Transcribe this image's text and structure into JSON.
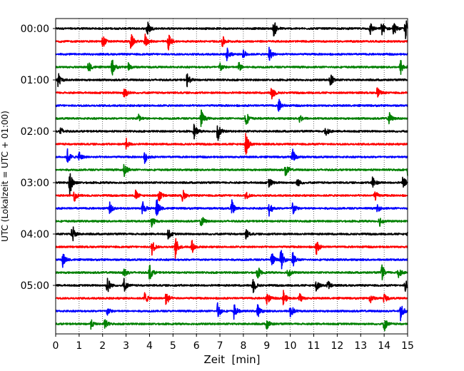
{
  "chart_data": {
    "type": "line",
    "title": "",
    "xlabel": "Zeit  [min]",
    "ylabel": "UTC (Lokalzeit = UTC + 01:00)",
    "xlim": [
      0,
      15
    ],
    "xticks": [
      "0",
      "1",
      "2",
      "3",
      "4",
      "5",
      "6",
      "7",
      "8",
      "9",
      "10",
      "11",
      "12",
      "13",
      "14",
      "15"
    ],
    "ytick_labels": [
      "00:00",
      "01:00",
      "02:00",
      "03:00",
      "04:00",
      "05:00"
    ],
    "grid": "vertical dotted at each minute",
    "trace_interval_min": 15,
    "trace_count": 24,
    "colors": [
      "#000000",
      "#ff0000",
      "#0000ff",
      "#008000"
    ],
    "series": [
      {
        "hour": "00:00",
        "traces": [
          {
            "offset_min": 0,
            "color": "#000000",
            "events": [
              [
                3.9,
                1.0
              ],
              [
                9.3,
                1.0
              ],
              [
                13.4,
                0.8
              ],
              [
                13.9,
                0.9
              ],
              [
                14.4,
                0.8
              ],
              [
                14.9,
                1.3
              ]
            ]
          },
          {
            "offset_min": 15,
            "color": "#ff0000",
            "events": [
              [
                2.0,
                0.8
              ],
              [
                3.2,
                1.0
              ],
              [
                3.8,
                0.9
              ],
              [
                4.8,
                1.0
              ],
              [
                7.1,
                0.7
              ]
            ]
          },
          {
            "offset_min": 30,
            "color": "#0000ff",
            "events": [
              [
                7.3,
                0.8
              ],
              [
                8.0,
                0.6
              ],
              [
                9.1,
                0.9
              ]
            ]
          },
          {
            "offset_min": 45,
            "color": "#008000",
            "events": [
              [
                1.4,
                0.7
              ],
              [
                2.4,
                1.0
              ],
              [
                3.1,
                0.5
              ],
              [
                7.0,
                0.6
              ],
              [
                7.8,
                0.6
              ],
              [
                14.7,
                0.9
              ]
            ]
          }
        ]
      },
      {
        "hour": "01:00",
        "traces": [
          {
            "offset_min": 0,
            "color": "#000000",
            "events": [
              [
                0.1,
                0.9
              ],
              [
                5.6,
                0.8
              ],
              [
                11.7,
                1.0
              ]
            ]
          },
          {
            "offset_min": 15,
            "color": "#ff0000",
            "events": [
              [
                2.9,
                1.0
              ],
              [
                9.2,
                1.0
              ],
              [
                13.7,
                0.7
              ]
            ]
          },
          {
            "offset_min": 30,
            "color": "#0000ff",
            "events": [
              [
                9.5,
                0.8
              ]
            ]
          },
          {
            "offset_min": 45,
            "color": "#008000",
            "events": [
              [
                3.5,
                0.6
              ],
              [
                6.2,
                1.1
              ],
              [
                8.1,
                1.0
              ],
              [
                10.4,
                0.5
              ],
              [
                14.2,
                0.8
              ]
            ]
          }
        ]
      },
      {
        "hour": "02:00",
        "traces": [
          {
            "offset_min": 0,
            "color": "#000000",
            "events": [
              [
                0.2,
                0.5
              ],
              [
                5.9,
                0.9
              ],
              [
                6.9,
                1.2
              ],
              [
                11.5,
                0.7
              ]
            ]
          },
          {
            "offset_min": 15,
            "color": "#ff0000",
            "events": [
              [
                3.0,
                0.6
              ],
              [
                8.1,
                1.5
              ]
            ]
          },
          {
            "offset_min": 30,
            "color": "#0000ff",
            "events": [
              [
                0.5,
                0.9
              ],
              [
                1.0,
                0.7
              ],
              [
                3.8,
                0.7
              ],
              [
                10.1,
                1.0
              ]
            ]
          },
          {
            "offset_min": 45,
            "color": "#008000",
            "events": [
              [
                2.9,
                1.1
              ],
              [
                9.8,
                0.9
              ],
              [
                15.0,
                0.6
              ]
            ]
          }
        ]
      },
      {
        "hour": "03:00",
        "traces": [
          {
            "offset_min": 0,
            "color": "#000000",
            "events": [
              [
                0.6,
                1.5
              ],
              [
                9.1,
                0.6
              ],
              [
                10.3,
                0.6
              ],
              [
                13.5,
                0.9
              ],
              [
                14.8,
                0.8
              ]
            ]
          },
          {
            "offset_min": 15,
            "color": "#ff0000",
            "events": [
              [
                0.8,
                0.7
              ],
              [
                3.4,
                0.6
              ],
              [
                4.4,
                0.8
              ],
              [
                5.4,
                0.8
              ],
              [
                8.1,
                0.5
              ],
              [
                13.6,
                0.6
              ]
            ]
          },
          {
            "offset_min": 30,
            "color": "#0000ff",
            "events": [
              [
                2.3,
                0.6
              ],
              [
                3.7,
                1.0
              ],
              [
                4.3,
                1.2
              ],
              [
                7.5,
                1.0
              ],
              [
                9.1,
                0.9
              ],
              [
                10.1,
                0.9
              ],
              [
                13.7,
                0.5
              ]
            ]
          },
          {
            "offset_min": 45,
            "color": "#008000",
            "events": [
              [
                4.1,
                0.7
              ],
              [
                6.2,
                0.8
              ],
              [
                13.8,
                0.6
              ]
            ]
          }
        ]
      },
      {
        "hour": "04:00",
        "traces": [
          {
            "offset_min": 0,
            "color": "#000000",
            "events": [
              [
                0.7,
                1.2
              ],
              [
                4.8,
                0.6
              ],
              [
                8.1,
                0.7
              ],
              [
                15.0,
                0.4
              ]
            ]
          },
          {
            "offset_min": 15,
            "color": "#ff0000",
            "events": [
              [
                4.1,
                0.9
              ],
              [
                5.1,
                1.2
              ],
              [
                5.8,
                0.8
              ],
              [
                11.1,
                0.9
              ]
            ]
          },
          {
            "offset_min": 30,
            "color": "#0000ff",
            "events": [
              [
                0.3,
                0.9
              ],
              [
                9.2,
                1.0
              ],
              [
                9.6,
                1.3
              ],
              [
                10.1,
                0.9
              ]
            ]
          },
          {
            "offset_min": 45,
            "color": "#008000",
            "events": [
              [
                2.9,
                0.7
              ],
              [
                4.0,
                1.0
              ],
              [
                8.6,
                0.8
              ],
              [
                9.9,
                0.7
              ],
              [
                13.9,
                0.9
              ],
              [
                14.6,
                0.8
              ]
            ]
          }
        ]
      },
      {
        "hour": "05:00",
        "traces": [
          {
            "offset_min": 0,
            "color": "#000000",
            "events": [
              [
                2.2,
                1.1
              ],
              [
                2.9,
                0.9
              ],
              [
                8.4,
                1.0
              ],
              [
                11.1,
                0.8
              ],
              [
                11.6,
                0.6
              ],
              [
                14.9,
                0.7
              ]
            ]
          },
          {
            "offset_min": 15,
            "color": "#ff0000",
            "events": [
              [
                3.8,
                0.8
              ],
              [
                4.7,
                1.0
              ],
              [
                9.0,
                0.8
              ],
              [
                9.7,
                1.0
              ],
              [
                10.4,
                0.6
              ],
              [
                13.4,
                0.6
              ],
              [
                14.0,
                0.6
              ]
            ]
          },
          {
            "offset_min": 30,
            "color": "#0000ff",
            "events": [
              [
                2.2,
                0.5
              ],
              [
                6.9,
                1.0
              ],
              [
                7.6,
                0.9
              ],
              [
                8.6,
                0.8
              ],
              [
                10.0,
                1.0
              ],
              [
                14.7,
                1.0
              ]
            ]
          },
          {
            "offset_min": 45,
            "color": "#008000",
            "events": [
              [
                1.5,
                0.5
              ],
              [
                2.1,
                0.6
              ],
              [
                9.0,
                0.7
              ],
              [
                14.0,
                0.9
              ]
            ]
          }
        ]
      }
    ]
  }
}
